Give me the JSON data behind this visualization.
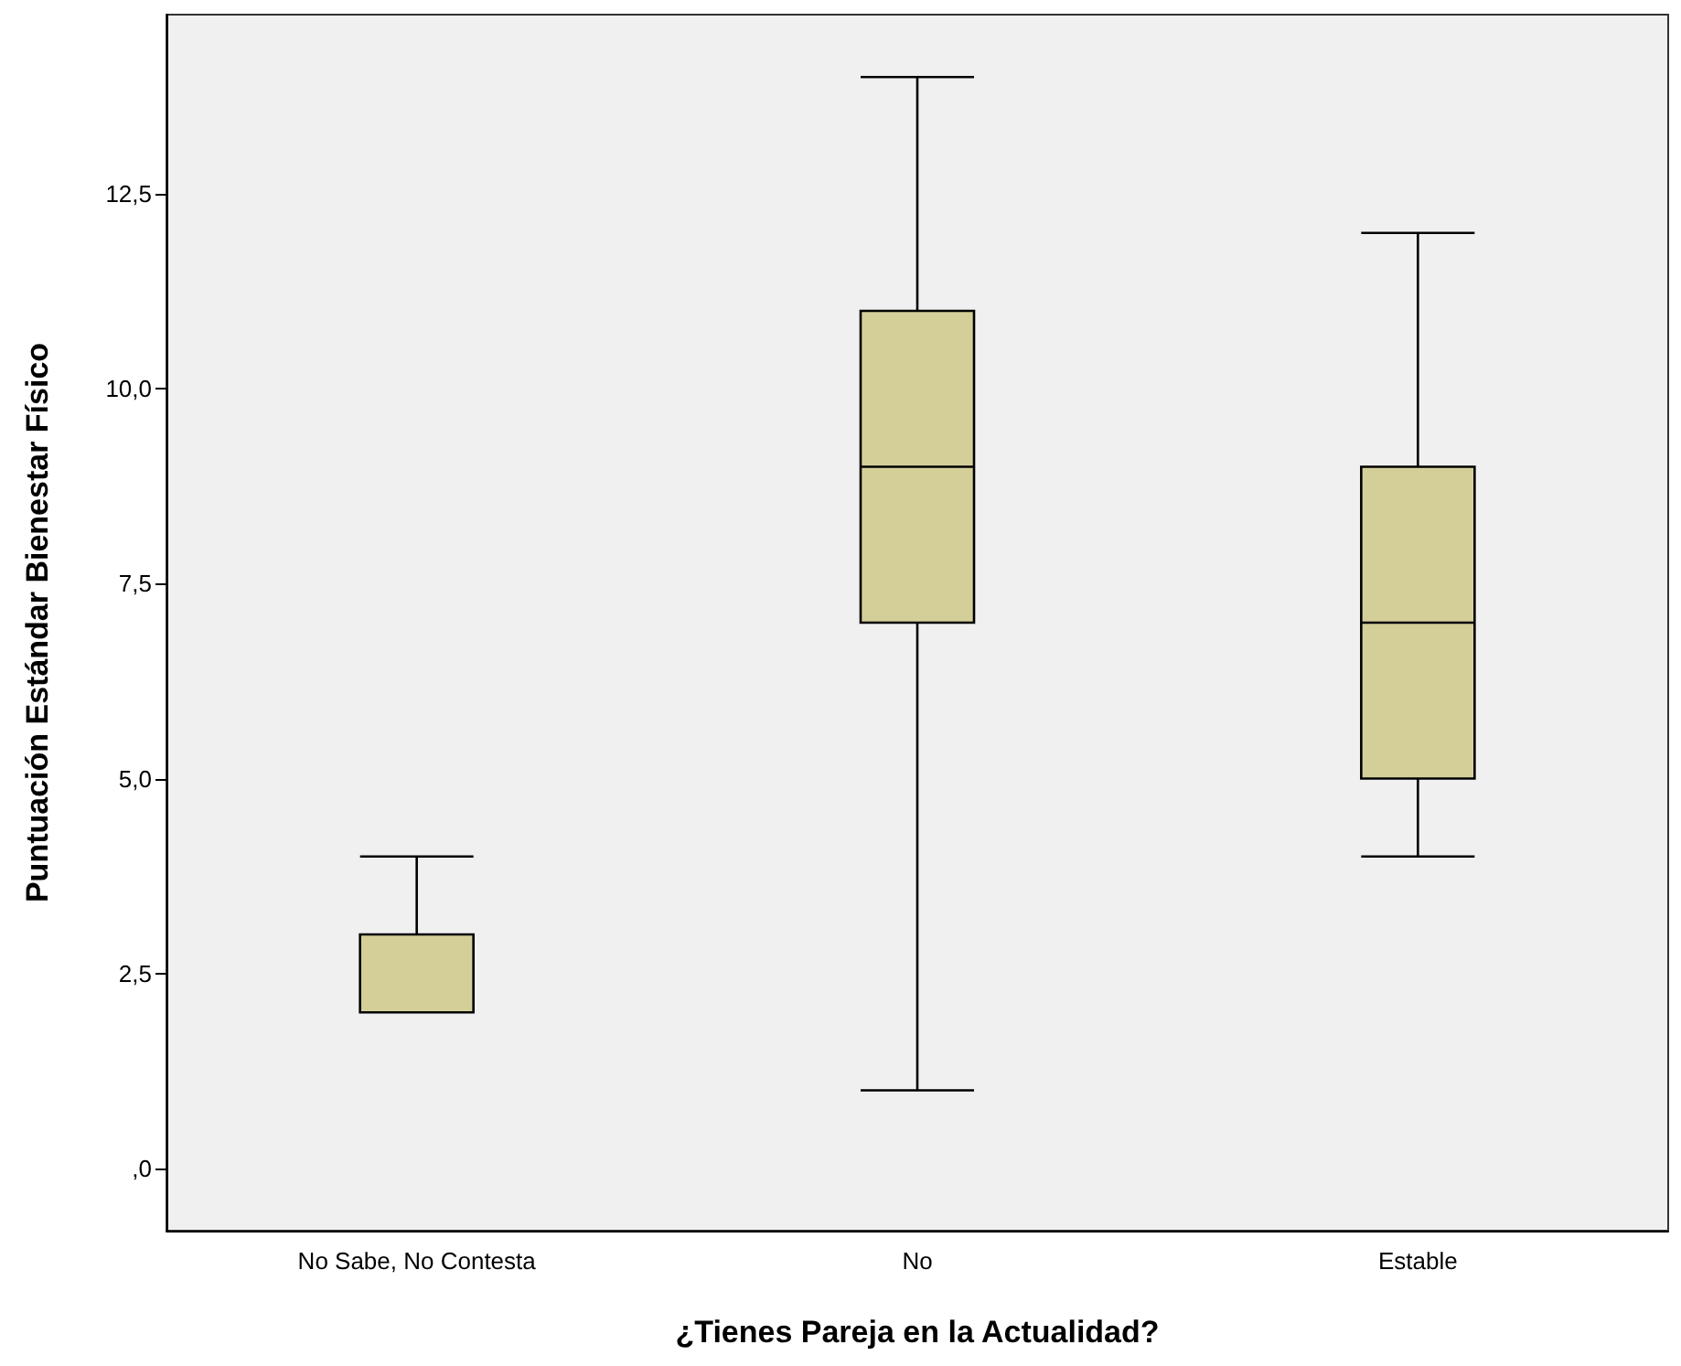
{
  "chart_data": {
    "type": "box",
    "xlabel": "¿Tienes Pareja en la Actualidad?",
    "ylabel": "Puntuación Estándar Bienestar Físico",
    "categories": [
      "No Sabe, No Contesta",
      "No",
      "Estable"
    ],
    "series": [
      {
        "color": "#d4cf99",
        "boxes": [
          {
            "low": 2,
            "q1": 2,
            "median": 2,
            "q3": 3,
            "high": 4
          },
          {
            "low": 1,
            "q1": 7,
            "median": 9,
            "q3": 11,
            "high": 14
          },
          {
            "low": 4,
            "q1": 5,
            "median": 7,
            "q3": 9,
            "high": 12
          }
        ]
      }
    ],
    "ylim": [
      -0.8,
      14.8
    ],
    "yticks": [
      {
        "value": 0,
        "label": ",0"
      },
      {
        "value": 2.5,
        "label": "2,5"
      },
      {
        "value": 5,
        "label": "5,0"
      },
      {
        "value": 7.5,
        "label": "7,5"
      },
      {
        "value": 10,
        "label": "10,0"
      },
      {
        "value": 12.5,
        "label": "12,5"
      }
    ],
    "grid": false
  }
}
